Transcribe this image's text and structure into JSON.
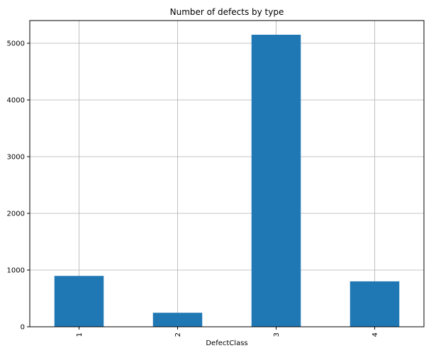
{
  "chart_data": {
    "type": "bar",
    "title": "Number of defects by type",
    "xlabel": "DefectClass",
    "ylabel": "",
    "categories": [
      "1",
      "2",
      "3",
      "4"
    ],
    "values": [
      897,
      247,
      5150,
      801
    ],
    "ylim": [
      0,
      5400
    ],
    "yticks": [
      0,
      1000,
      2000,
      3000,
      4000,
      5000
    ],
    "grid": true,
    "legend": "none",
    "bar_color": "#1f77b4",
    "grid_color": "#b0b0b0"
  }
}
